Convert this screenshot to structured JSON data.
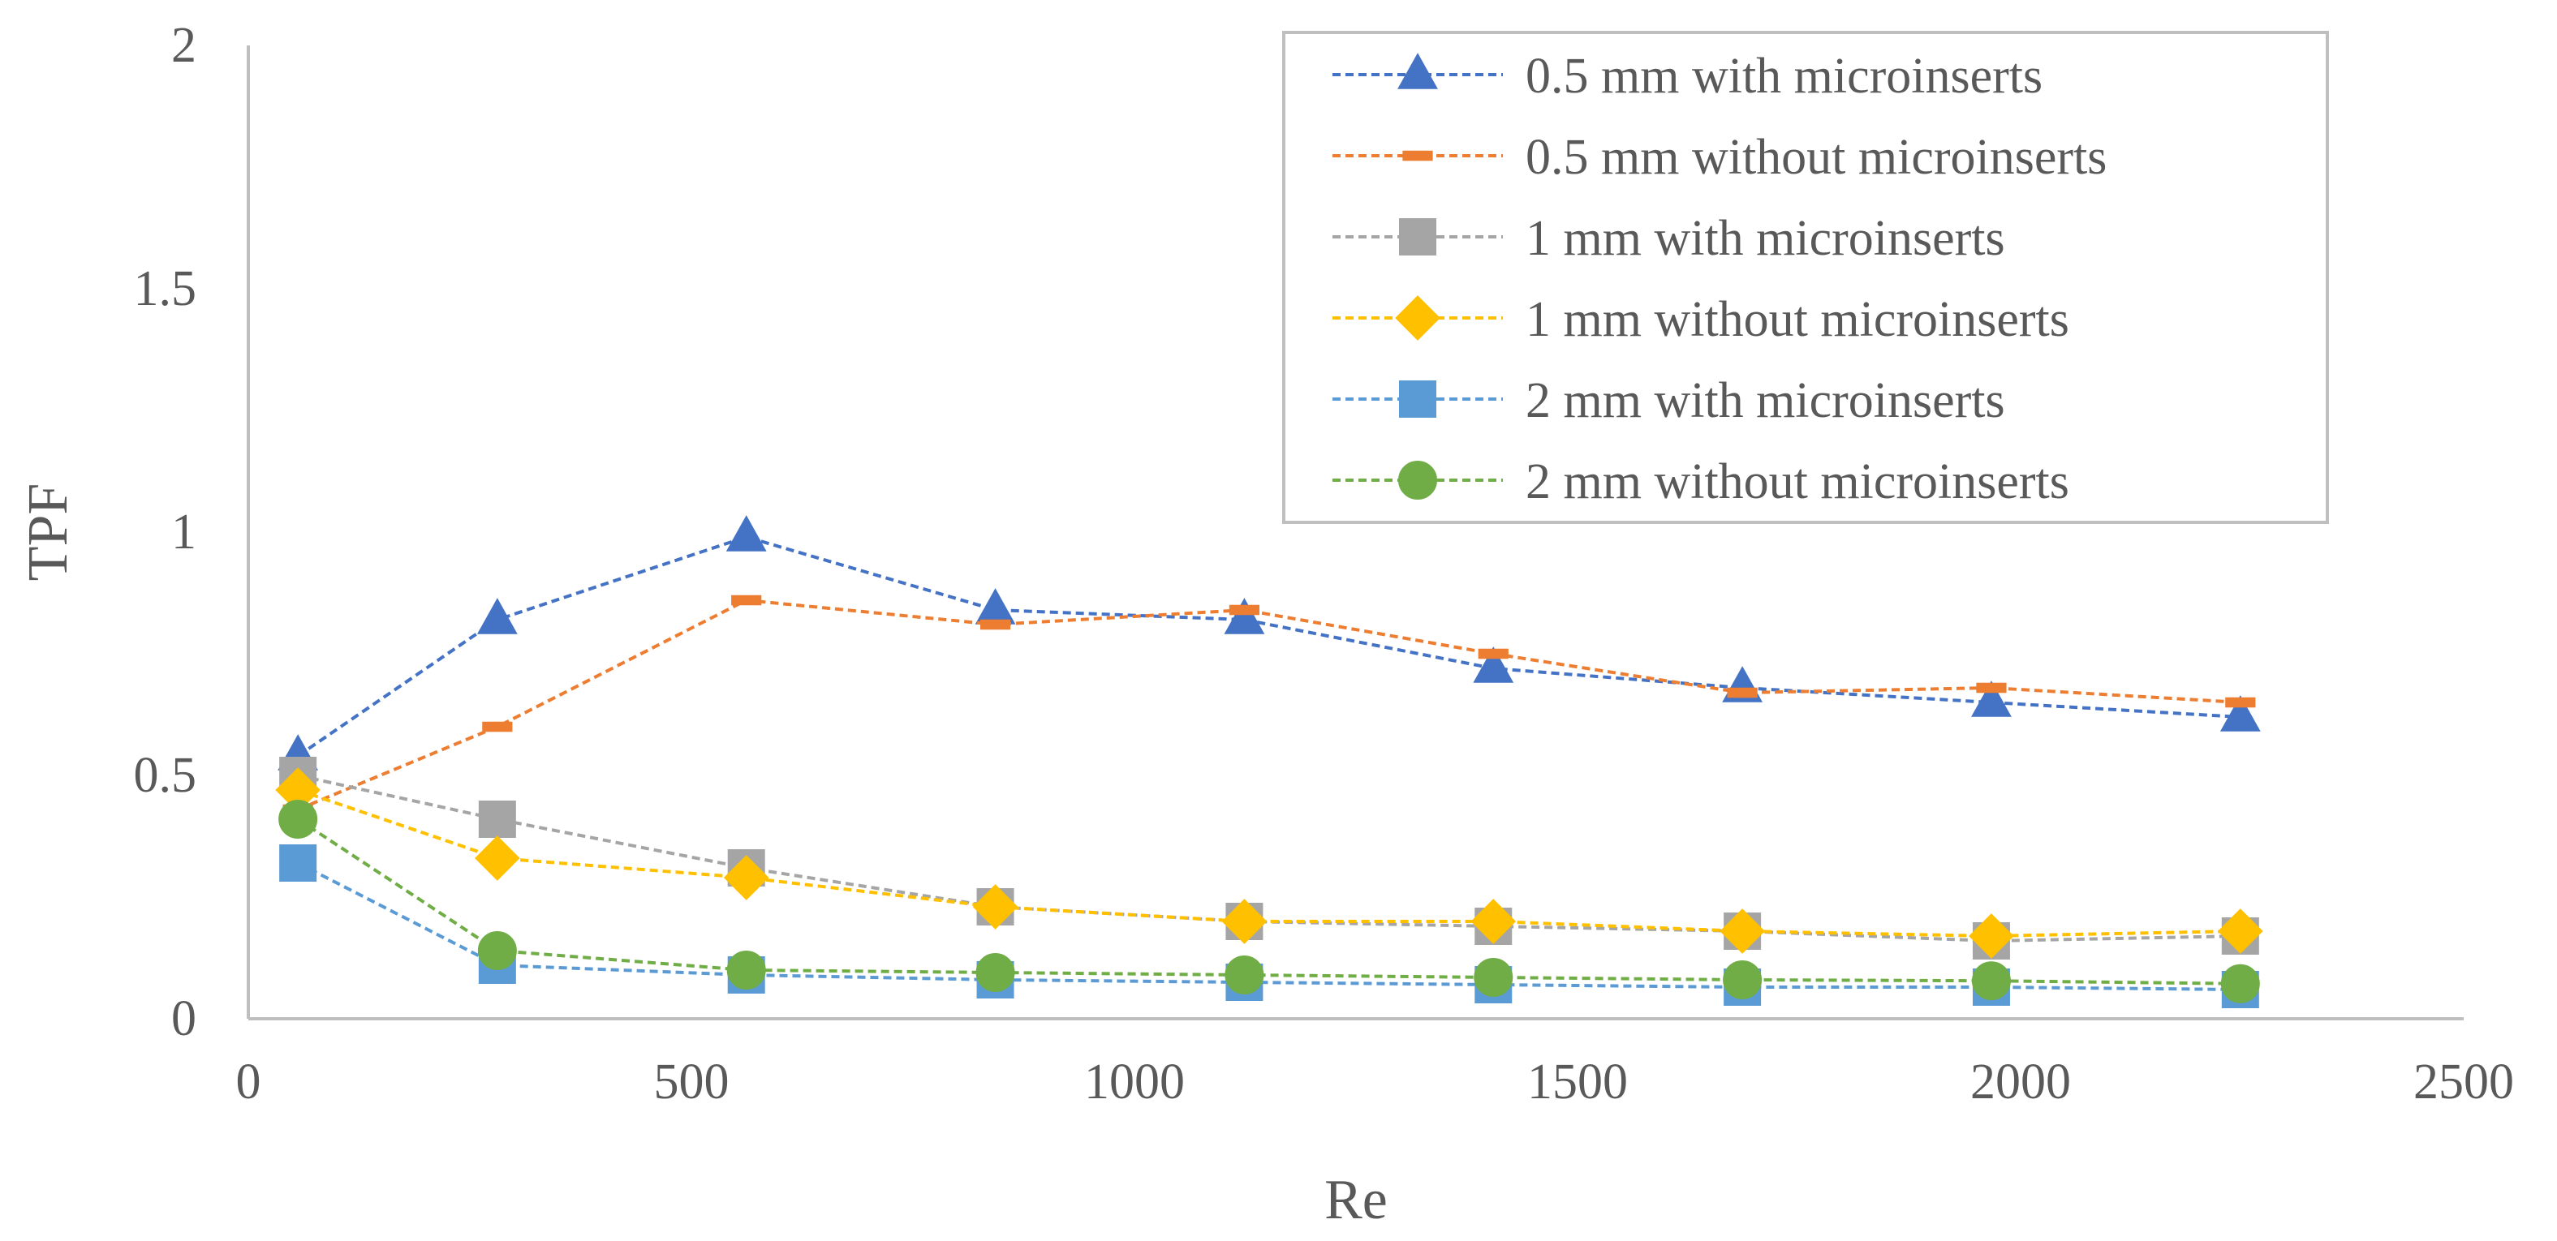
{
  "chart_data": {
    "type": "line",
    "title": "",
    "xlabel": "Re",
    "ylabel": "TPF",
    "xlim": [
      0,
      2500
    ],
    "ylim": [
      0,
      2
    ],
    "x_ticks": [
      0,
      500,
      1000,
      1500,
      2000,
      2500
    ],
    "y_ticks": [
      0,
      0.5,
      1,
      1.5,
      2
    ],
    "x_tick_labels": [
      "0",
      "500",
      "1000",
      "1500",
      "2000",
      "2500"
    ],
    "y_tick_labels": [
      "0",
      "0.5",
      "1",
      "1.5",
      "2"
    ],
    "grid": false,
    "legend_position": "top-right",
    "x": [
      56,
      281,
      562,
      843,
      1124,
      1405,
      1686,
      1967,
      2248
    ],
    "series": [
      {
        "name": "0.5 mm with microinserts",
        "color": "#4472C4",
        "marker": "triangle",
        "values": [
          0.54,
          0.82,
          0.99,
          0.84,
          0.82,
          0.72,
          0.68,
          0.65,
          0.62
        ]
      },
      {
        "name": "0.5 mm without microinserts",
        "color": "#ED7D31",
        "marker": "dash",
        "values": [
          0.43,
          0.6,
          0.86,
          0.81,
          0.84,
          0.75,
          0.67,
          0.68,
          0.65
        ]
      },
      {
        "name": "1 mm with microinserts",
        "color": "#A5A5A5",
        "marker": "square",
        "values": [
          0.5,
          0.41,
          0.31,
          0.23,
          0.2,
          0.19,
          0.18,
          0.16,
          0.17
        ]
      },
      {
        "name": "1 mm without microinserts",
        "color": "#FFC000",
        "marker": "diamond",
        "values": [
          0.47,
          0.33,
          0.29,
          0.23,
          0.2,
          0.2,
          0.18,
          0.17,
          0.18
        ]
      },
      {
        "name": "2 mm with microinserts",
        "color": "#5B9BD5",
        "marker": "square",
        "values": [
          0.32,
          0.11,
          0.09,
          0.08,
          0.075,
          0.07,
          0.065,
          0.065,
          0.06
        ]
      },
      {
        "name": "2 mm without microinserts",
        "color": "#70AD47",
        "marker": "circle",
        "values": [
          0.41,
          0.14,
          0.1,
          0.095,
          0.09,
          0.085,
          0.08,
          0.078,
          0.072
        ]
      }
    ]
  }
}
